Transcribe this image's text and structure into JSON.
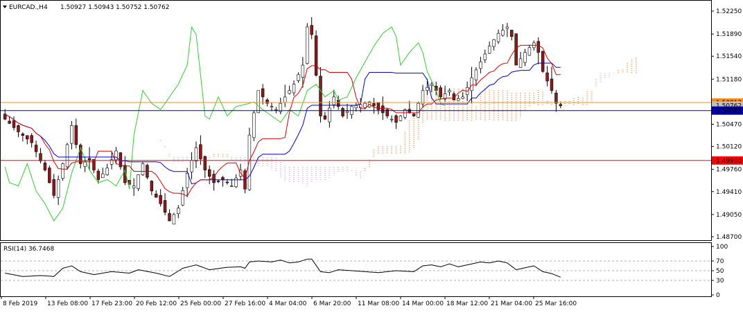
{
  "header": {
    "symbol": "EURCAD.,H4",
    "ohlc": "1.50927 1.50943 1.50752 1.50762"
  },
  "rsi_header": "RSI(14) 36.7468",
  "price_axis": [
    "1.52250",
    "1.51890",
    "1.51540",
    "1.51180",
    "1.50830",
    "1.50470",
    "1.50120",
    "1.49760",
    "1.49410",
    "1.49050",
    "1.48700"
  ],
  "rsi_axis": [
    "100",
    "70",
    "50",
    "30",
    "0"
  ],
  "time_axis": [
    "8 Feb 2019",
    "13 Feb 08:00",
    "17 Feb 23:00",
    "20 Feb 12:00",
    "25 Feb 00:00",
    "27 Feb 16:00",
    "4 Mar 04:00",
    "6 Mar 20:00",
    "11 Mar 08:00",
    "14 Mar 00:00",
    "18 Mar 12:00",
    "21 Mar 04:00",
    "25 Mar 16:00"
  ],
  "levels": {
    "orange_label": "1.50812",
    "current_label": "1.50762",
    "blue_label": "1.50685",
    "red_label": "1.49900"
  },
  "colors": {
    "bull": "#ffffff",
    "bear": "#8b1a1a",
    "candle_outline": "#000000",
    "tenkan": "#d40000",
    "kijun": "#0000cc",
    "chikou": "#33cc33",
    "cloud_a": "#e8a070",
    "cloud_b": "#d8b8d8",
    "orange_line": "#ff8c1a",
    "blue_line": "#0000aa",
    "red_line": "#ff0000",
    "rsi_line": "#000000"
  },
  "chart_data": [
    {
      "type": "candlestick",
      "title": "EURCAD.,H4",
      "ylim": [
        1.487,
        1.5225
      ],
      "close_path": [
        [
          0,
          1.5055
        ],
        [
          3,
          1.5035
        ],
        [
          6,
          1.5018
        ],
        [
          9,
          1.4975
        ],
        [
          11,
          1.4935
        ],
        [
          13,
          1.4985
        ],
        [
          15,
          1.5045
        ],
        [
          17,
          1.4985
        ],
        [
          19,
          1.499
        ],
        [
          21,
          1.496
        ],
        [
          23,
          1.4978
        ],
        [
          25,
          1.5005
        ],
        [
          27,
          1.4955
        ],
        [
          29,
          1.495
        ],
        [
          31,
          1.4985
        ],
        [
          33,
          1.4942
        ],
        [
          35,
          1.4922
        ],
        [
          37,
          1.4895
        ],
        [
          39,
          1.4915
        ],
        [
          41,
          1.497
        ],
        [
          43,
          1.501
        ],
        [
          45,
          1.4975
        ],
        [
          47,
          1.4955
        ],
        [
          49,
          1.496
        ],
        [
          51,
          1.495
        ],
        [
          53,
          1.4975
        ],
        [
          54,
          1.4945
        ],
        [
          55,
          1.503
        ],
        [
          57,
          1.51
        ],
        [
          59,
          1.508
        ],
        [
          61,
          1.507
        ],
        [
          63,
          1.509
        ],
        [
          65,
          1.511
        ],
        [
          67,
          1.514
        ],
        [
          68,
          1.52
        ],
        [
          69,
          1.5188
        ],
        [
          71,
          1.506
        ],
        [
          72,
          1.5055
        ],
        [
          74,
          1.509
        ],
        [
          76,
          1.506
        ],
        [
          78,
          1.5075
        ],
        [
          80,
          1.5078
        ],
        [
          82,
          1.5082
        ],
        [
          84,
          1.507
        ],
        [
          86,
          1.506
        ],
        [
          88,
          1.505
        ],
        [
          90,
          1.507
        ],
        [
          92,
          1.506
        ],
        [
          94,
          1.51
        ],
        [
          96,
          1.511
        ],
        [
          98,
          1.509
        ],
        [
          100,
          1.51
        ],
        [
          101,
          1.5085
        ],
        [
          103,
          1.509
        ],
        [
          105,
          1.512
        ],
        [
          107,
          1.5145
        ],
        [
          109,
          1.517
        ],
        [
          111,
          1.519
        ],
        [
          113,
          1.52
        ],
        [
          114,
          1.5185
        ],
        [
          115,
          1.514
        ],
        [
          117,
          1.516
        ],
        [
          119,
          1.5175
        ],
        [
          120,
          1.516
        ],
        [
          121,
          1.513
        ],
        [
          123,
          1.51
        ],
        [
          124,
          1.508
        ],
        [
          125,
          1.5076
        ]
      ],
      "rsi": {
        "name": "RSI(14)",
        "last": 36.7468,
        "ylim": [
          0,
          100
        ],
        "levels": [
          70,
          50,
          30
        ],
        "path": [
          [
            0,
            45
          ],
          [
            4,
            38
          ],
          [
            8,
            40
          ],
          [
            11,
            38
          ],
          [
            13,
            55
          ],
          [
            15,
            60
          ],
          [
            17,
            48
          ],
          [
            20,
            42
          ],
          [
            24,
            48
          ],
          [
            28,
            45
          ],
          [
            30,
            52
          ],
          [
            34,
            45
          ],
          [
            37,
            38
          ],
          [
            40,
            55
          ],
          [
            43,
            62
          ],
          [
            46,
            52
          ],
          [
            50,
            57
          ],
          [
            53,
            58
          ],
          [
            54,
            55
          ],
          [
            55,
            68
          ],
          [
            57,
            70
          ],
          [
            60,
            68
          ],
          [
            62,
            72
          ],
          [
            64,
            66
          ],
          [
            66,
            68
          ],
          [
            68,
            74
          ],
          [
            69,
            74
          ],
          [
            71,
            48
          ],
          [
            73,
            46
          ],
          [
            75,
            52
          ],
          [
            78,
            50
          ],
          [
            81,
            48
          ],
          [
            84,
            46
          ],
          [
            88,
            50
          ],
          [
            92,
            48
          ],
          [
            94,
            60
          ],
          [
            96,
            62
          ],
          [
            98,
            58
          ],
          [
            100,
            64
          ],
          [
            102,
            58
          ],
          [
            105,
            64
          ],
          [
            107,
            68
          ],
          [
            109,
            66
          ],
          [
            111,
            70
          ],
          [
            113,
            66
          ],
          [
            115,
            52
          ],
          [
            117,
            56
          ],
          [
            119,
            60
          ],
          [
            121,
            48
          ],
          [
            123,
            44
          ],
          [
            125,
            36.7
          ]
        ]
      }
    }
  ]
}
